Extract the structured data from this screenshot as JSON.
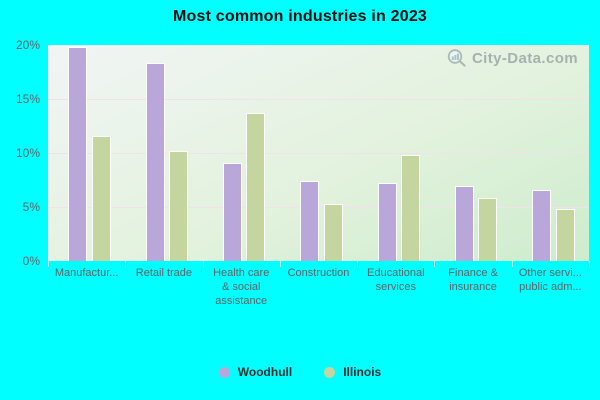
{
  "title": "Most common industries in 2023",
  "watermark": {
    "text": "City-Data.com",
    "icon": "magnifier-with-bars-icon"
  },
  "colors": {
    "page_background": "#00ffff",
    "plot_gradient_top": "#f1f5f5",
    "plot_gradient_bottom": "#cdeccd",
    "gridline": "#f3e0ec",
    "woodhull_bar": "#b9a7da",
    "illinois_bar": "#c5d5a0",
    "axis_text": "#5e6468",
    "title_text": "#111111",
    "legend_text": "#333333",
    "watermark_text": "#7e8a92"
  },
  "chart_data": {
    "type": "bar",
    "title": "Most common industries in 2023",
    "categories": [
      "Manufactur...",
      "Retail trade",
      "Health care & social assistance",
      "Construction",
      "Educational services",
      "Finance & insurance",
      "Other servi... public adm..."
    ],
    "category_display_lines": [
      [
        "Manufactur..."
      ],
      [
        "Retail trade"
      ],
      [
        "Health care",
        "& social",
        "assistance"
      ],
      [
        "Construction"
      ],
      [
        "Educational",
        "services"
      ],
      [
        "Finance &",
        "insurance"
      ],
      [
        "Other servi...",
        "public adm..."
      ]
    ],
    "series": [
      {
        "name": "Woodhull",
        "color": "#b9a7da",
        "values": [
          19.8,
          18.3,
          9.1,
          7.4,
          7.2,
          6.9,
          6.6
        ]
      },
      {
        "name": "Illinois",
        "color": "#c5d5a0",
        "values": [
          11.6,
          10.2,
          13.7,
          5.3,
          9.8,
          5.8,
          4.8
        ]
      }
    ],
    "xlabel": "",
    "ylabel": "",
    "ylim": [
      0,
      20
    ],
    "y_tick_values": [
      0,
      5,
      10,
      15,
      20
    ],
    "y_tick_labels": [
      "0%",
      "5%",
      "10%",
      "15%",
      "20%"
    ],
    "gridline_values": [
      5,
      10,
      15
    ],
    "grid": true,
    "legend_position": "bottom"
  }
}
